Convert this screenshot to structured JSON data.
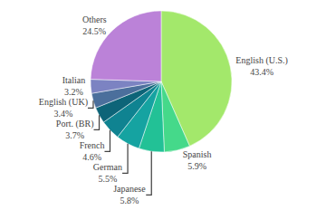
{
  "chart_data": {
    "type": "pie",
    "categories": [
      "English (U.S.)",
      "Spanish",
      "Japanese",
      "German",
      "French",
      "Port. (BR)",
      "English (UK)",
      "Italian",
      "Others"
    ],
    "values": [
      43.4,
      5.9,
      5.8,
      5.5,
      4.6,
      3.7,
      3.4,
      3.2,
      24.5
    ],
    "value_labels": [
      "43.4%",
      "5.9%",
      "5.8%",
      "5.5%",
      "4.6%",
      "3.7%",
      "3.4%",
      "3.2%",
      "24.5%"
    ],
    "colors": [
      "#a3e86b",
      "#45d98a",
      "#22c196",
      "#15a3a1",
      "#0f8391",
      "#0d6478",
      "#4b6f9c",
      "#7c83c2",
      "#bb82d8"
    ],
    "data_labels": true
  }
}
